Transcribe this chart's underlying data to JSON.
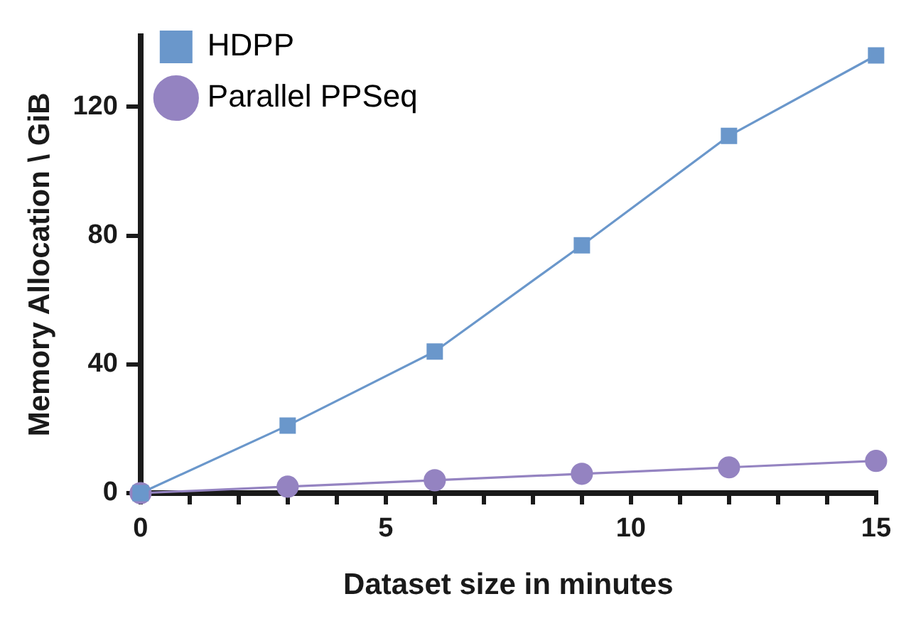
{
  "chart_data": {
    "type": "line",
    "xlabel": "Dataset size in minutes",
    "ylabel": "Memory Allocation \\ GiB",
    "x": [
      0,
      3,
      6,
      9,
      12,
      15
    ],
    "series": [
      {
        "name": "HDPP",
        "color": "#6a97cb",
        "values": [
          0,
          21,
          44,
          77,
          111,
          136
        ],
        "marker": "square"
      },
      {
        "name": "Parallel PPSeq",
        "color": "#9483c1",
        "values": [
          0,
          2,
          4,
          6,
          8,
          10
        ],
        "marker": "circle"
      }
    ],
    "xlim": [
      0,
      15
    ],
    "xticks": [
      0,
      {
        "value": 1,
        "label": null
      },
      {
        "value": 2,
        "label": null
      },
      {
        "value": 3,
        "label": null
      },
      {
        "value": 4,
        "label": null
      },
      5,
      {
        "value": 6,
        "label": null
      },
      {
        "value": 7,
        "label": null
      },
      {
        "value": 8,
        "label": null
      },
      {
        "value": 9,
        "label": null
      },
      10,
      {
        "value": 11,
        "label": null
      },
      {
        "value": 12,
        "label": null
      },
      {
        "value": 13,
        "label": null
      },
      {
        "value": 14,
        "label": null
      },
      15
    ],
    "ylim": [
      0,
      142
    ],
    "yticks": [
      0,
      40,
      80,
      120
    ],
    "grid": false,
    "legend": "top left",
    "line_style": "solid"
  }
}
